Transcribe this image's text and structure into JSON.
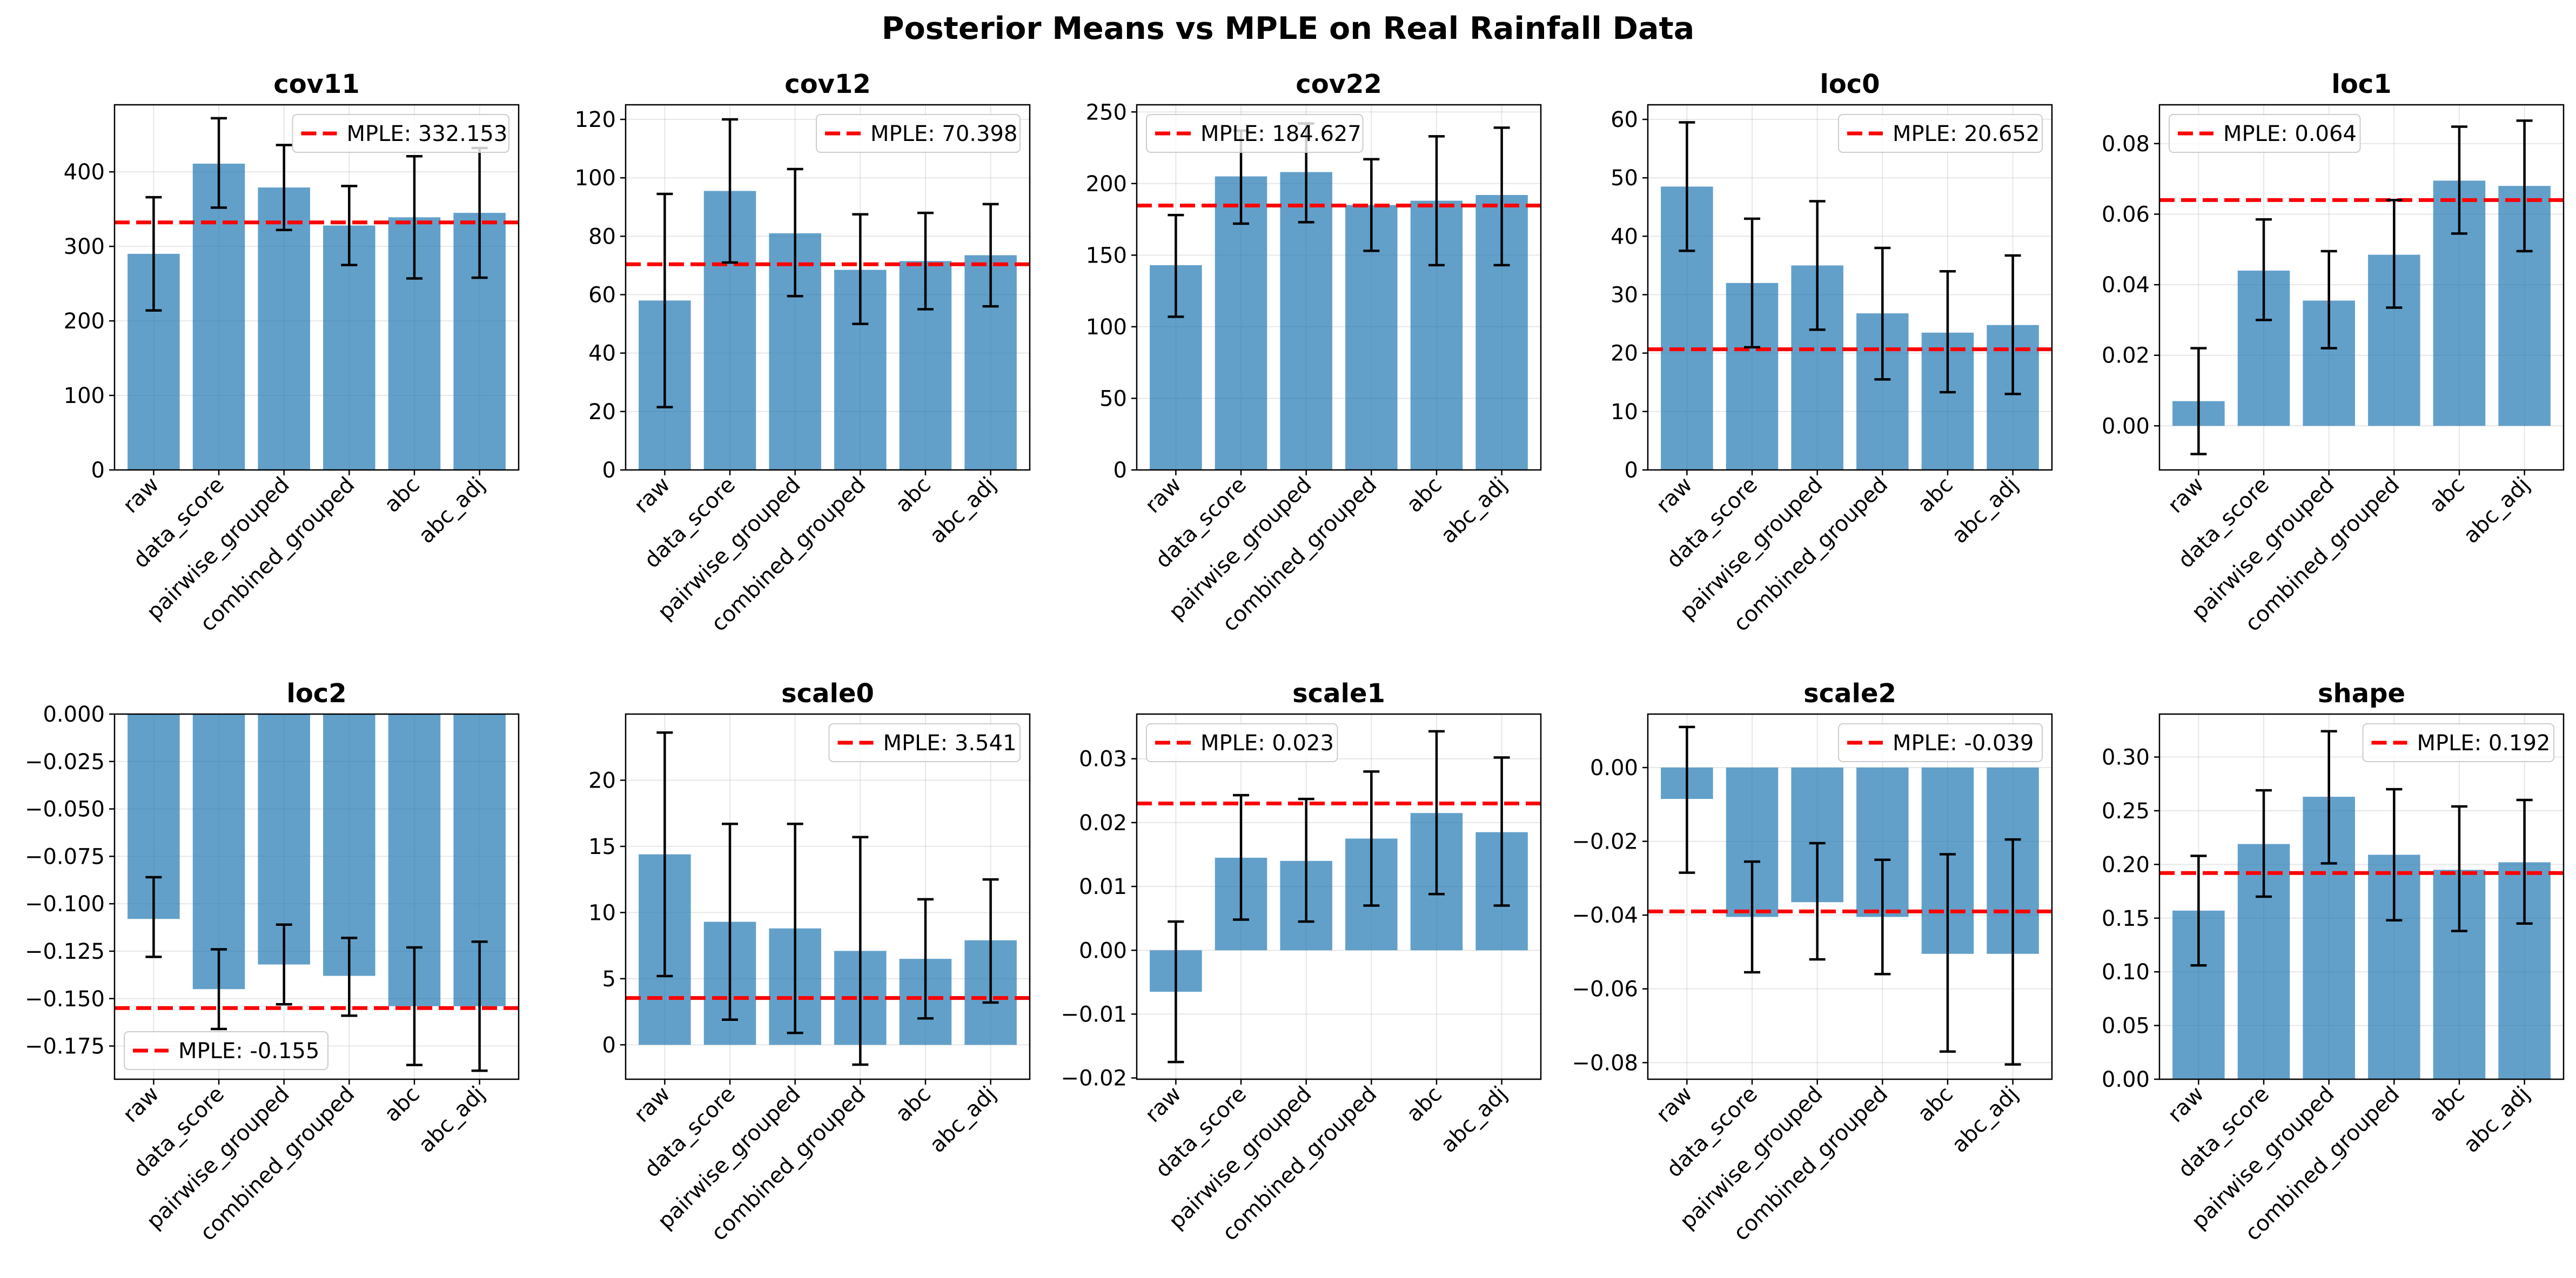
{
  "figure_title": "Posterior Means vs MPLE on Real Rainfall Data",
  "colors": {
    "bar": "#1f77b4",
    "bar_opacity": 0.7,
    "mple_line": "#ff0000",
    "error_bar": "#000000",
    "grid": "#b0b0b0"
  },
  "chart_data": [
    {
      "type": "bar",
      "title": "cov11",
      "categories": [
        "raw",
        "data_score",
        "pairwise_grouped",
        "combined_grouped",
        "abc",
        "abc_adj"
      ],
      "values": [
        290,
        411,
        379,
        328,
        339,
        345
      ],
      "error_low": [
        214,
        352,
        322,
        275,
        257,
        258
      ],
      "error_high": [
        366,
        472,
        436,
        381,
        421,
        432
      ],
      "ylim": [
        0,
        490
      ],
      "yticks": [
        0,
        100,
        200,
        300,
        400
      ],
      "mple": 332.153,
      "legend_label": "MPLE: 332.153",
      "legend_loc": "upper right",
      "grid": true
    },
    {
      "type": "bar",
      "title": "cov12",
      "categories": [
        "raw",
        "data_score",
        "pairwise_grouped",
        "combined_grouped",
        "abc",
        "abc_adj"
      ],
      "values": [
        58,
        95.5,
        81,
        68.5,
        71.5,
        73.5
      ],
      "error_low": [
        21.5,
        71,
        59.5,
        50,
        55,
        56
      ],
      "error_high": [
        94.5,
        120,
        103,
        87.5,
        88,
        91
      ],
      "ylim": [
        0,
        125
      ],
      "yticks": [
        0,
        20,
        40,
        60,
        80,
        100,
        120
      ],
      "mple": 70.398,
      "legend_label": "MPLE: 70.398",
      "legend_loc": "upper right",
      "grid": true
    },
    {
      "type": "bar",
      "title": "cov22",
      "categories": [
        "raw",
        "data_score",
        "pairwise_grouped",
        "combined_grouped",
        "abc",
        "abc_adj"
      ],
      "values": [
        143,
        205,
        208,
        185,
        188,
        192
      ],
      "error_low": [
        107,
        172,
        173,
        153,
        143,
        143
      ],
      "error_high": [
        178,
        237,
        242,
        217,
        233,
        239
      ],
      "ylim": [
        0,
        255
      ],
      "yticks": [
        0,
        50,
        100,
        150,
        200,
        250
      ],
      "mple": 184.627,
      "legend_label": "MPLE: 184.627",
      "legend_loc": "upper left",
      "grid": true
    },
    {
      "type": "bar",
      "title": "loc0",
      "categories": [
        "raw",
        "data_score",
        "pairwise_grouped",
        "combined_grouped",
        "abc",
        "abc_adj"
      ],
      "values": [
        48.5,
        32,
        35,
        26.8,
        23.5,
        24.8
      ],
      "error_low": [
        37.5,
        21,
        24,
        15.5,
        13.3,
        13
      ],
      "error_high": [
        59.5,
        43,
        46,
        38,
        34,
        36.7
      ],
      "ylim": [
        0,
        62.5
      ],
      "yticks": [
        0,
        10,
        20,
        30,
        40,
        50,
        60
      ],
      "mple": 20.652,
      "legend_label": "MPLE: 20.652",
      "legend_loc": "upper right",
      "grid": true
    },
    {
      "type": "bar",
      "title": "loc1",
      "categories": [
        "raw",
        "data_score",
        "pairwise_grouped",
        "combined_grouped",
        "abc",
        "abc_adj"
      ],
      "values": [
        0.007,
        0.044,
        0.0355,
        0.0485,
        0.0695,
        0.068
      ],
      "error_low": [
        -0.008,
        0.03,
        0.022,
        0.0335,
        0.0545,
        0.0495
      ],
      "error_high": [
        0.022,
        0.0585,
        0.0495,
        0.064,
        0.0848,
        0.0865
      ],
      "ylim": [
        -0.0125,
        0.091
      ],
      "yticks": [
        0,
        0.02,
        0.04,
        0.06,
        0.08
      ],
      "mple": 0.064,
      "legend_label": "MPLE: 0.064",
      "legend_loc": "upper left",
      "grid": true
    },
    {
      "type": "bar",
      "title": "loc2",
      "categories": [
        "raw",
        "data_score",
        "pairwise_grouped",
        "combined_grouped",
        "abc",
        "abc_adj"
      ],
      "values": [
        -0.108,
        -0.145,
        -0.132,
        -0.138,
        -0.154,
        -0.154
      ],
      "error_low": [
        -0.128,
        -0.166,
        -0.153,
        -0.159,
        -0.185,
        -0.188
      ],
      "error_high": [
        -0.086,
        -0.124,
        -0.111,
        -0.118,
        -0.123,
        -0.12
      ],
      "ylim": [
        -0.1925,
        0
      ],
      "yticks": [
        0,
        -0.025,
        -0.05,
        -0.075,
        -0.1,
        -0.125,
        -0.15,
        -0.175
      ],
      "mple": -0.155,
      "legend_label": "MPLE: -0.155",
      "legend_loc": "lower left",
      "grid": true
    },
    {
      "type": "bar",
      "title": "scale0",
      "categories": [
        "raw",
        "data_score",
        "pairwise_grouped",
        "combined_grouped",
        "abc",
        "abc_adj"
      ],
      "values": [
        14.4,
        9.3,
        8.8,
        7.1,
        6.5,
        7.9
      ],
      "error_low": [
        5.2,
        1.9,
        0.9,
        -1.5,
        2,
        3.2
      ],
      "error_high": [
        23.6,
        16.7,
        16.7,
        15.7,
        11,
        12.5
      ],
      "ylim": [
        -2.6,
        25
      ],
      "yticks": [
        0,
        5,
        10,
        15,
        20
      ],
      "mple": 3.541,
      "legend_label": "MPLE: 3.541",
      "legend_loc": "upper right",
      "grid": true
    },
    {
      "type": "bar",
      "title": "scale1",
      "categories": [
        "raw",
        "data_score",
        "pairwise_grouped",
        "combined_grouped",
        "abc",
        "abc_adj"
      ],
      "values": [
        -0.0065,
        0.0145,
        0.014,
        0.0175,
        0.0215,
        0.0185
      ],
      "error_low": [
        -0.0175,
        0.0048,
        0.0045,
        0.007,
        0.0088,
        0.007
      ],
      "error_high": [
        0.0045,
        0.0243,
        0.0237,
        0.028,
        0.0343,
        0.0302
      ],
      "ylim": [
        -0.0202,
        0.037
      ],
      "yticks": [
        -0.02,
        -0.01,
        0,
        0.01,
        0.02,
        0.03
      ],
      "mple": 0.023,
      "legend_label": "MPLE: 0.023",
      "legend_loc": "upper left",
      "grid": true
    },
    {
      "type": "bar",
      "title": "scale2",
      "categories": [
        "raw",
        "data_score",
        "pairwise_grouped",
        "combined_grouped",
        "abc",
        "abc_adj"
      ],
      "values": [
        -0.0085,
        -0.0405,
        -0.0365,
        -0.0405,
        -0.0505,
        -0.0505
      ],
      "error_low": [
        -0.0285,
        -0.0555,
        -0.052,
        -0.056,
        -0.077,
        -0.0805
      ],
      "error_high": [
        0.011,
        -0.0255,
        -0.0205,
        -0.025,
        -0.0235,
        -0.0195
      ],
      "ylim": [
        -0.0845,
        0.0145
      ],
      "yticks": [
        0,
        -0.02,
        -0.04,
        -0.06,
        -0.08
      ],
      "mple": -0.039,
      "legend_label": "MPLE: -0.039",
      "legend_loc": "upper right",
      "grid": true
    },
    {
      "type": "bar",
      "title": "shape",
      "categories": [
        "raw",
        "data_score",
        "pairwise_grouped",
        "combined_grouped",
        "abc",
        "abc_adj"
      ],
      "values": [
        0.157,
        0.219,
        0.263,
        0.209,
        0.195,
        0.202
      ],
      "error_low": [
        0.106,
        0.17,
        0.201,
        0.148,
        0.138,
        0.145
      ],
      "error_high": [
        0.208,
        0.269,
        0.324,
        0.27,
        0.254,
        0.26
      ],
      "ylim": [
        0,
        0.34
      ],
      "yticks": [
        0,
        0.05,
        0.1,
        0.15,
        0.2,
        0.25,
        0.3
      ],
      "mple": 0.192,
      "legend_label": "MPLE: 0.192",
      "legend_loc": "upper right",
      "grid": true
    }
  ]
}
